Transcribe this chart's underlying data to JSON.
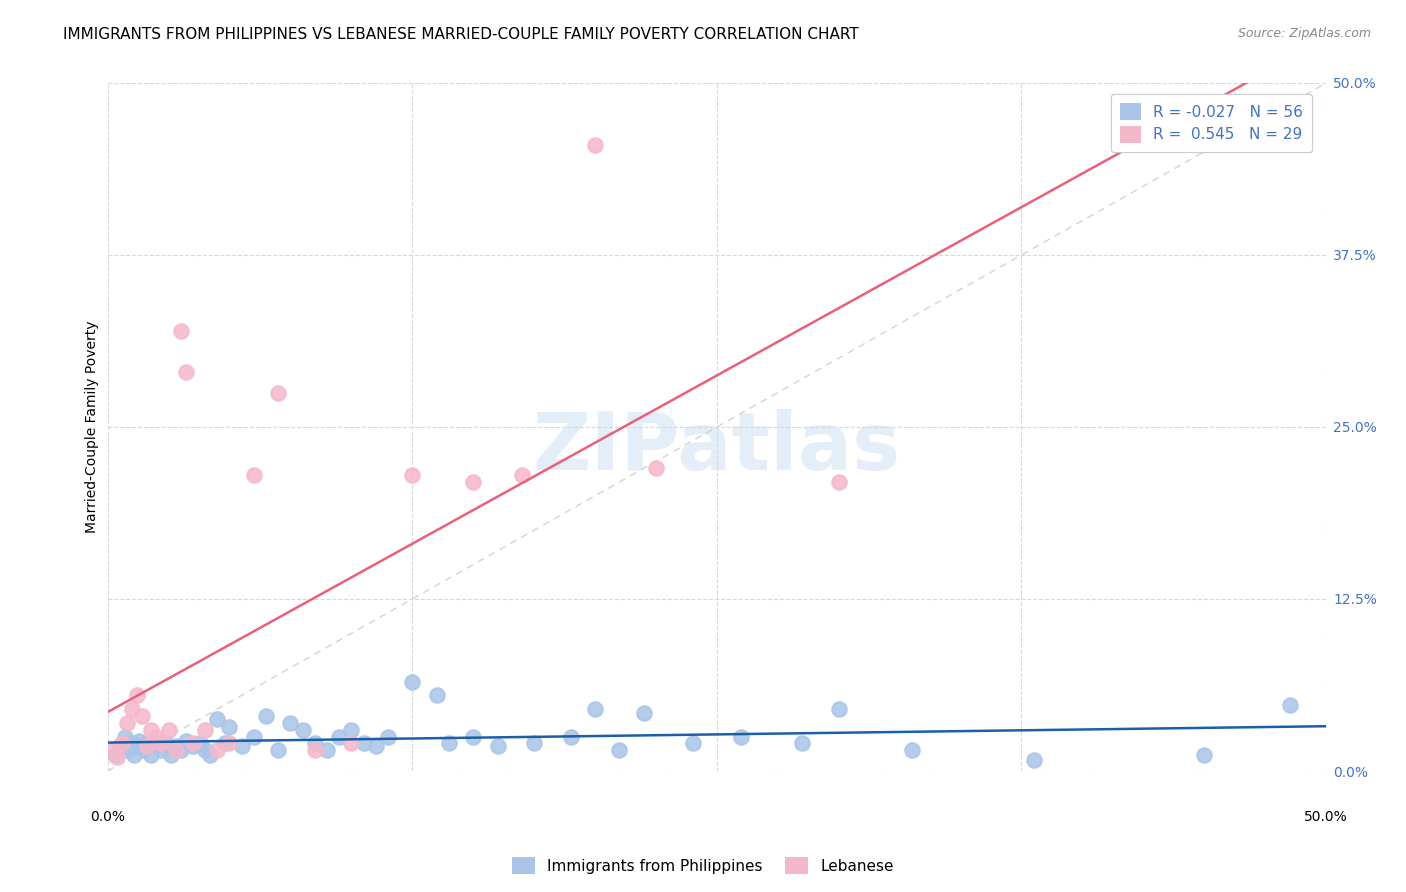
{
  "title": "IMMIGRANTS FROM PHILIPPINES VS LEBANESE MARRIED-COUPLE FAMILY POVERTY CORRELATION CHART",
  "source": "Source: ZipAtlas.com",
  "ylabel": "Married-Couple Family Poverty",
  "ytick_values": [
    0.0,
    12.5,
    25.0,
    37.5,
    50.0
  ],
  "ytick_labels": [
    "0.0%",
    "12.5%",
    "25.0%",
    "37.5%",
    "50.0%"
  ],
  "xlim": [
    0.0,
    50.0
  ],
  "ylim": [
    0.0,
    50.0
  ],
  "watermark": "ZIPatlas",
  "philippines_color": "#aac4e8",
  "lebanese_color": "#f5b8cb",
  "philippines_line_color": "#1a5fa8",
  "lebanese_line_color": "#e8607a",
  "diagonal_color": "#c8c8c8",
  "grid_color": "#d8d8d8",
  "right_tick_color": "#4472c4",
  "philippines_scatter": [
    [
      0.3,
      1.2
    ],
    [
      0.5,
      1.8
    ],
    [
      0.7,
      2.5
    ],
    [
      0.8,
      1.5
    ],
    [
      1.0,
      2.0
    ],
    [
      1.1,
      1.2
    ],
    [
      1.2,
      1.8
    ],
    [
      1.3,
      2.2
    ],
    [
      1.5,
      1.5
    ],
    [
      1.6,
      2.0
    ],
    [
      1.8,
      1.2
    ],
    [
      2.0,
      1.8
    ],
    [
      2.2,
      1.5
    ],
    [
      2.4,
      2.0
    ],
    [
      2.6,
      1.2
    ],
    [
      2.8,
      1.8
    ],
    [
      3.0,
      1.5
    ],
    [
      3.2,
      2.2
    ],
    [
      3.5,
      1.8
    ],
    [
      3.8,
      2.0
    ],
    [
      4.0,
      1.5
    ],
    [
      4.2,
      1.2
    ],
    [
      4.5,
      3.8
    ],
    [
      4.8,
      2.0
    ],
    [
      5.0,
      3.2
    ],
    [
      5.5,
      1.8
    ],
    [
      6.0,
      2.5
    ],
    [
      6.5,
      4.0
    ],
    [
      7.0,
      1.5
    ],
    [
      7.5,
      3.5
    ],
    [
      8.0,
      3.0
    ],
    [
      8.5,
      2.0
    ],
    [
      9.0,
      1.5
    ],
    [
      9.5,
      2.5
    ],
    [
      10.0,
      3.0
    ],
    [
      10.5,
      2.0
    ],
    [
      11.0,
      1.8
    ],
    [
      11.5,
      2.5
    ],
    [
      12.5,
      6.5
    ],
    [
      13.5,
      5.5
    ],
    [
      14.0,
      2.0
    ],
    [
      15.0,
      2.5
    ],
    [
      16.0,
      1.8
    ],
    [
      17.5,
      2.0
    ],
    [
      19.0,
      2.5
    ],
    [
      20.0,
      4.5
    ],
    [
      21.0,
      1.5
    ],
    [
      22.0,
      4.2
    ],
    [
      24.0,
      2.0
    ],
    [
      26.0,
      2.5
    ],
    [
      28.5,
      2.0
    ],
    [
      30.0,
      4.5
    ],
    [
      33.0,
      1.5
    ],
    [
      38.0,
      0.8
    ],
    [
      45.0,
      1.2
    ],
    [
      48.5,
      4.8
    ]
  ],
  "lebanese_scatter": [
    [
      0.2,
      1.5
    ],
    [
      0.4,
      1.0
    ],
    [
      0.6,
      2.0
    ],
    [
      0.8,
      3.5
    ],
    [
      1.0,
      4.5
    ],
    [
      1.2,
      5.5
    ],
    [
      1.4,
      4.0
    ],
    [
      1.6,
      1.8
    ],
    [
      1.8,
      3.0
    ],
    [
      2.0,
      2.5
    ],
    [
      2.2,
      2.0
    ],
    [
      2.5,
      3.0
    ],
    [
      2.8,
      1.5
    ],
    [
      3.0,
      32.0
    ],
    [
      3.2,
      29.0
    ],
    [
      3.5,
      2.0
    ],
    [
      4.0,
      3.0
    ],
    [
      4.5,
      1.5
    ],
    [
      5.0,
      2.0
    ],
    [
      6.0,
      21.5
    ],
    [
      7.0,
      27.5
    ],
    [
      8.5,
      1.5
    ],
    [
      10.0,
      2.0
    ],
    [
      12.5,
      21.5
    ],
    [
      15.0,
      21.0
    ],
    [
      17.0,
      21.5
    ],
    [
      20.0,
      45.5
    ],
    [
      22.5,
      22.0
    ],
    [
      30.0,
      21.0
    ]
  ],
  "legend_R_labels": [
    "R = -0.027   N = 56",
    "R =  0.545   N = 29"
  ],
  "legend_bottom_labels": [
    "Immigrants from Philippines",
    "Lebanese"
  ],
  "title_fontsize": 11,
  "source_fontsize": 9,
  "tick_fontsize": 10,
  "ylabel_fontsize": 10
}
